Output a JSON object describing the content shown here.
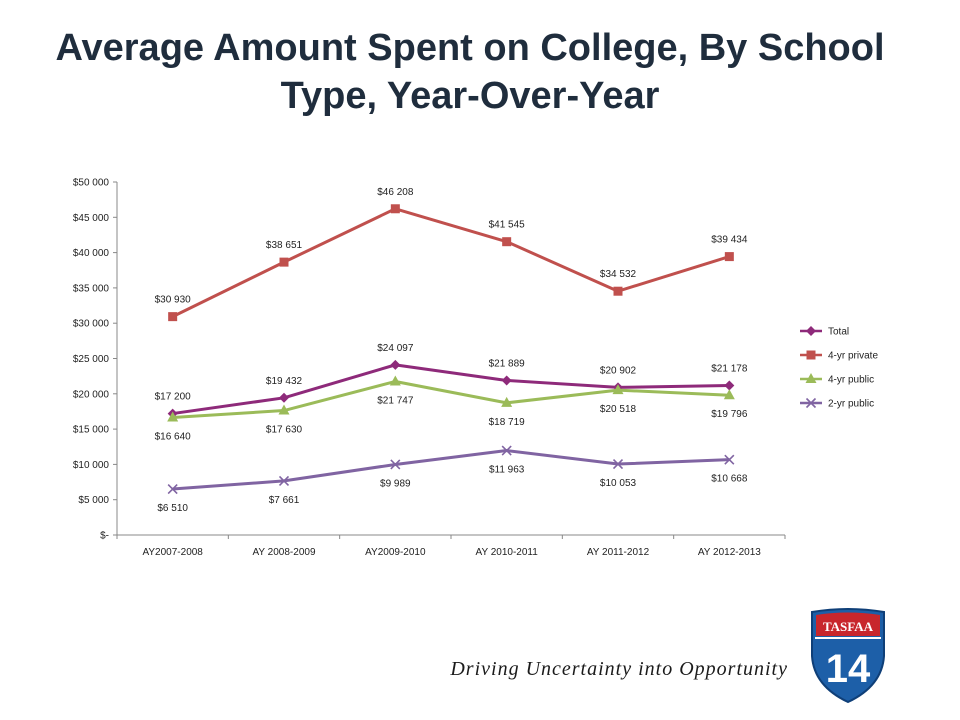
{
  "title": "Average Amount Spent on College, By School Type, Year-Over-Year",
  "tagline": "Driving Uncertainty into Opportunity",
  "logo": {
    "line1": "TASFAA",
    "line2": "14"
  },
  "chart_data": {
    "type": "line",
    "categories": [
      "AY2007-2008",
      "AY 2008-2009",
      "AY2009-2010",
      "AY 2010-2011",
      "AY 2011-2012",
      "AY 2012-2013"
    ],
    "ylim": [
      0,
      50000
    ],
    "yticks": [
      {
        "value": 0,
        "label": "$-"
      },
      {
        "value": 5000,
        "label": "$5 000"
      },
      {
        "value": 10000,
        "label": "$10 000"
      },
      {
        "value": 15000,
        "label": "$15 000"
      },
      {
        "value": 20000,
        "label": "$20 000"
      },
      {
        "value": 25000,
        "label": "$25 000"
      },
      {
        "value": 30000,
        "label": "$30 000"
      },
      {
        "value": 35000,
        "label": "$35 000"
      },
      {
        "value": 40000,
        "label": "$40 000"
      },
      {
        "value": 45000,
        "label": "$45 000"
      },
      {
        "value": 50000,
        "label": "$50 000"
      }
    ],
    "legend_position": "right",
    "grid": false,
    "series": [
      {
        "name": "Total",
        "color": "#8e2a7a",
        "marker": "diamond",
        "values": [
          17200,
          19432,
          24097,
          21889,
          20902,
          21178
        ],
        "labels": [
          "$17 200",
          "$19 432",
          "$24 097",
          "$21 889",
          "$20 902",
          "$21 178"
        ],
        "label_pos": "above"
      },
      {
        "name": "4-yr private",
        "color": "#c0504d",
        "marker": "square",
        "values": [
          30930,
          38651,
          46208,
          41545,
          34532,
          39434
        ],
        "labels": [
          "$30 930",
          "$38 651",
          "$46 208",
          "$41 545",
          "$34 532",
          "$39 434"
        ],
        "label_pos": "above"
      },
      {
        "name": "4-yr public",
        "color": "#9bbb59",
        "marker": "triangle",
        "values": [
          16640,
          17630,
          21747,
          18719,
          20518,
          19796
        ],
        "labels": [
          "$16 640",
          "$17 630",
          "$21 747",
          "$18 719",
          "$20 518",
          "$19 796"
        ],
        "label_pos": "below"
      },
      {
        "name": "2-yr public",
        "color": "#8064a2",
        "marker": "x",
        "values": [
          6510,
          7661,
          9989,
          11963,
          10053,
          10668
        ],
        "labels": [
          "$6 510",
          "$7 661",
          "$9 989",
          "$11 963",
          "$10 053",
          "$10 668"
        ],
        "label_pos": "below"
      }
    ]
  }
}
